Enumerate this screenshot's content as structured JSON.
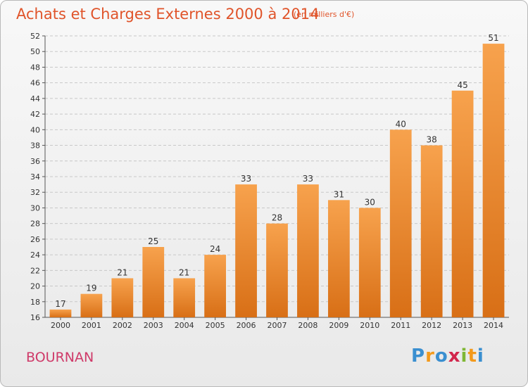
{
  "header": {
    "title": "Achats et Charges Externes 2000 à 2014",
    "subtitle": "(en milliers d'€)"
  },
  "footer": {
    "location": "BOURNAN",
    "logo": {
      "letters": [
        "P",
        "r",
        "o",
        "x",
        "i",
        "t",
        "i"
      ],
      "colors": [
        "#3a8fd0",
        "#f39a1c",
        "#3a8fd0",
        "#d2264c",
        "#7fb735",
        "#f39a1c",
        "#3a8fd0"
      ]
    }
  },
  "chart_data": {
    "type": "bar",
    "title": "Achats et Charges Externes 2000 à 2014",
    "subtitle": "(en milliers d'€)",
    "xlabel": "",
    "ylabel": "",
    "categories": [
      "2000",
      "2001",
      "2002",
      "2003",
      "2004",
      "2005",
      "2006",
      "2007",
      "2008",
      "2009",
      "2010",
      "2011",
      "2012",
      "2013",
      "2014"
    ],
    "values": [
      17,
      19,
      21,
      25,
      21,
      24,
      33,
      28,
      33,
      31,
      30,
      40,
      38,
      45,
      51
    ],
    "ylim": [
      16,
      52
    ],
    "yticks": [
      16,
      18,
      20,
      22,
      24,
      26,
      28,
      30,
      32,
      34,
      36,
      38,
      40,
      42,
      44,
      46,
      48,
      50,
      52
    ],
    "grid": true,
    "data_labels": true,
    "colors": {
      "bar_light": "#f7a24d",
      "bar_dark": "#d86f16",
      "grid": "#c8c8c8"
    }
  }
}
